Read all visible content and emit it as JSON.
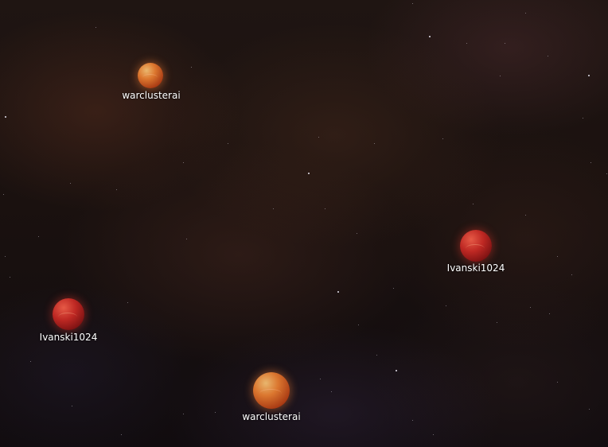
{
  "planets": [
    {
      "owner": "warclusterai",
      "color": "#e07a30"
    },
    {
      "owner": "Ivanski1024",
      "color": "#c0302a"
    },
    {
      "owner": "Ivanski1024",
      "color": "#c0302a"
    },
    {
      "owner": "warclusterai",
      "color": "#e07a30"
    }
  ]
}
